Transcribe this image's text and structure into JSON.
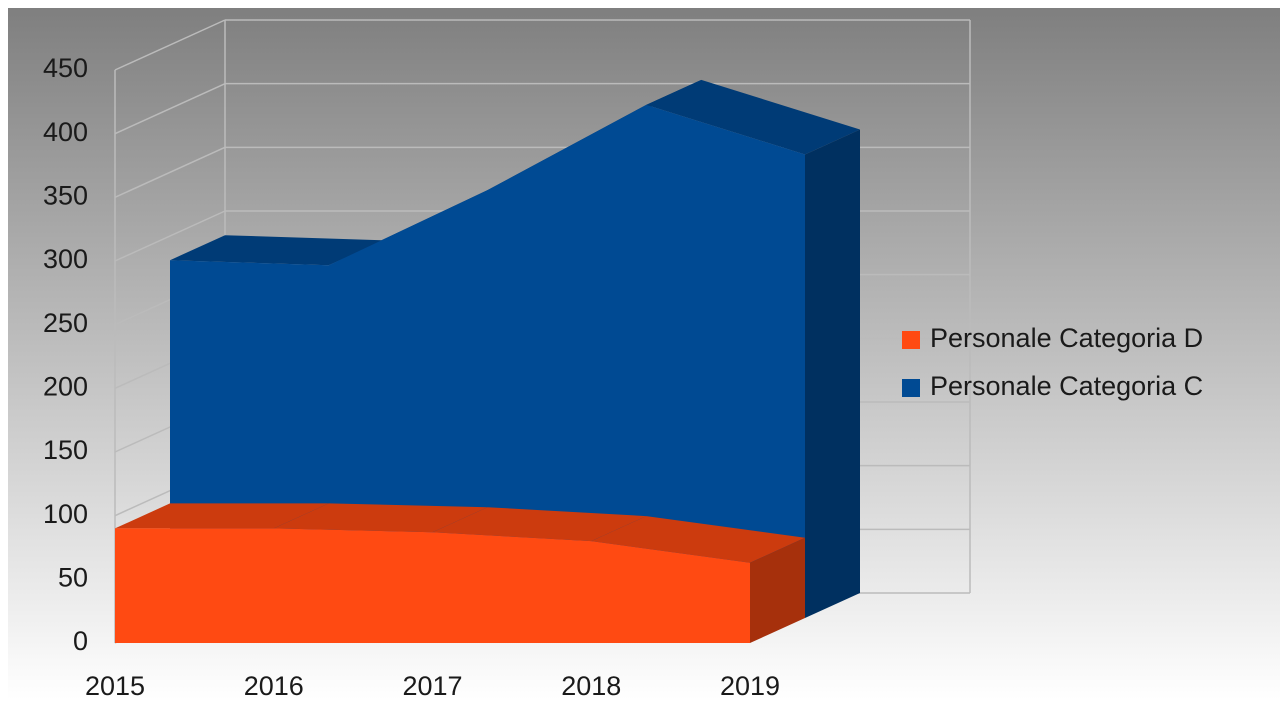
{
  "chart_data": {
    "type": "area3d",
    "categories": [
      "2015",
      "2016",
      "2017",
      "2018",
      "2019"
    ],
    "series": [
      {
        "name": "Personale Categoria D",
        "color": "#ff4a12",
        "values": [
          90,
          90,
          87,
          80,
          63
        ]
      },
      {
        "name": "Personale Categoria C",
        "color": "#004a93",
        "values": [
          281,
          277,
          336,
          403,
          364
        ]
      }
    ],
    "ylim": [
      0,
      450
    ],
    "yticks": [
      0,
      50,
      100,
      150,
      200,
      250,
      300,
      350,
      400,
      450
    ],
    "grid": true,
    "legend": "right"
  }
}
